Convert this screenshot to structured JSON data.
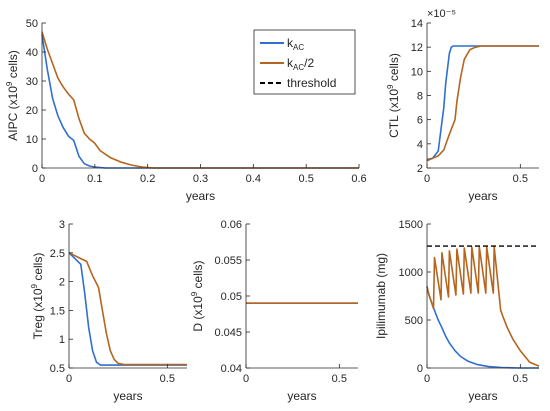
{
  "colors": {
    "kac": "#2f6fd0",
    "kac2": "#b5651d",
    "threshold": "#000000",
    "axis": "#262626"
  },
  "legend": {
    "items": [
      {
        "key": "kac",
        "base": "k",
        "sub": "AC",
        "suffix": ""
      },
      {
        "key": "kac2",
        "base": "k",
        "sub": "AC",
        "suffix": "/2"
      },
      {
        "key": "threshold",
        "base": "threshold",
        "sub": "",
        "suffix": ""
      }
    ]
  },
  "chart_data": [
    {
      "id": "aipc",
      "type": "line",
      "xlabel": "years",
      "ylabel": "AIPC (x10^9 cells)",
      "xlim": [
        0,
        0.6
      ],
      "ylim": [
        0,
        50
      ],
      "xticks": [
        "0",
        "0.1",
        "0.2",
        "0.3",
        "0.4",
        "0.5",
        "0.6"
      ],
      "yticks": [
        "0",
        "10",
        "20",
        "30",
        "40",
        "50"
      ],
      "series": [
        {
          "key": "kac",
          "x": [
            0,
            0.01,
            0.02,
            0.03,
            0.04,
            0.05,
            0.06,
            0.07,
            0.08,
            0.09,
            0.1,
            0.12,
            0.6
          ],
          "y": [
            46,
            34,
            24,
            18,
            14,
            11,
            9.5,
            4,
            1.5,
            0.7,
            0.3,
            0,
            0
          ]
        },
        {
          "key": "kac2",
          "x": [
            0,
            0.01,
            0.02,
            0.03,
            0.04,
            0.05,
            0.06,
            0.07,
            0.08,
            0.09,
            0.1,
            0.11,
            0.13,
            0.15,
            0.17,
            0.19,
            0.21,
            0.6
          ],
          "y": [
            47,
            41,
            36,
            31,
            28,
            25.5,
            23.5,
            17,
            12,
            10,
            8.5,
            6,
            3.5,
            2,
            1,
            0.3,
            0,
            0
          ]
        }
      ]
    },
    {
      "id": "ctl",
      "type": "line",
      "xlabel": "years",
      "ylabel": "CTL (x10^9 cells)",
      "yexp": "×10⁻⁵",
      "xlim": [
        0,
        0.6
      ],
      "ylim": [
        2,
        14
      ],
      "xticks": [
        "0",
        "0.5"
      ],
      "yticks": [
        "2",
        "4",
        "6",
        "8",
        "10",
        "12",
        "14"
      ],
      "series": [
        {
          "key": "kac",
          "x": [
            0,
            0.03,
            0.06,
            0.09,
            0.1,
            0.12,
            0.13,
            0.14,
            0.6
          ],
          "y": [
            2.7,
            2.8,
            3.4,
            7,
            9,
            11.5,
            12,
            12.1,
            12.1
          ]
        },
        {
          "key": "kac2",
          "x": [
            0,
            0.03,
            0.06,
            0.09,
            0.12,
            0.15,
            0.16,
            0.18,
            0.2,
            0.23,
            0.26,
            0.29,
            0.6
          ],
          "y": [
            2.6,
            2.8,
            3,
            3.5,
            4.8,
            6,
            7.5,
            9.5,
            11,
            11.8,
            12,
            12.1,
            12.1
          ]
        }
      ]
    },
    {
      "id": "treg",
      "type": "line",
      "xlabel": "years",
      "ylabel": "Treg (x10^9 cells)",
      "xlim": [
        0,
        0.6
      ],
      "ylim": [
        0.5,
        3
      ],
      "xticks": [
        "0",
        "0.5"
      ],
      "yticks": [
        "0.5",
        "1",
        "1.5",
        "2",
        "2.5",
        "3"
      ],
      "series": [
        {
          "key": "kac",
          "x": [
            0,
            0.03,
            0.06,
            0.08,
            0.1,
            0.12,
            0.14,
            0.16,
            0.6
          ],
          "y": [
            2.5,
            2.4,
            2.3,
            1.8,
            1.2,
            0.8,
            0.6,
            0.55,
            0.55
          ]
        },
        {
          "key": "kac2",
          "x": [
            0,
            0.03,
            0.06,
            0.09,
            0.12,
            0.15,
            0.17,
            0.19,
            0.21,
            0.23,
            0.25,
            0.28,
            0.6
          ],
          "y": [
            2.5,
            2.45,
            2.4,
            2.35,
            2.1,
            1.9,
            1.5,
            1.1,
            0.8,
            0.65,
            0.58,
            0.56,
            0.56
          ]
        }
      ]
    },
    {
      "id": "d",
      "type": "line",
      "xlabel": "years",
      "ylabel": "D (x10^9 cells)",
      "xlim": [
        0,
        0.6
      ],
      "ylim": [
        0.04,
        0.06
      ],
      "xticks": [
        "0",
        "0.5"
      ],
      "yticks": [
        "0.04",
        "0.045",
        "0.05",
        "0.055",
        "0.06"
      ],
      "series": [
        {
          "key": "kac",
          "x": [
            0,
            0.6
          ],
          "y": [
            0.049,
            0.049
          ]
        },
        {
          "key": "kac2",
          "x": [
            0,
            0.6
          ],
          "y": [
            0.049,
            0.049
          ]
        }
      ]
    },
    {
      "id": "ipi",
      "type": "line",
      "xlabel": "years",
      "ylabel": "Ipilimumab (mg)",
      "xlim": [
        0,
        0.6
      ],
      "ylim": [
        0,
        1500
      ],
      "xticks": [
        "0",
        "0.5"
      ],
      "yticks": [
        "0",
        "500",
        "1000",
        "1500"
      ],
      "threshold": 1270,
      "series": [
        {
          "key": "kac",
          "x": [
            0,
            0.01,
            0.025,
            0.04,
            0.06,
            0.08,
            0.1,
            0.12,
            0.15,
            0.18,
            0.22,
            0.27,
            0.33,
            0.4,
            0.45,
            0.5,
            0.55,
            0.6
          ],
          "y": [
            850,
            760,
            680,
            600,
            500,
            420,
            330,
            260,
            180,
            120,
            70,
            35,
            15,
            5,
            2,
            0,
            0,
            0
          ]
        },
        {
          "key": "kac2",
          "x": [
            0,
            0.005,
            0.035,
            0.04,
            0.075,
            0.08,
            0.115,
            0.12,
            0.155,
            0.16,
            0.195,
            0.2,
            0.235,
            0.24,
            0.275,
            0.28,
            0.315,
            0.32,
            0.355,
            0.36,
            0.395,
            0.41,
            0.43,
            0.46,
            0.5,
            0.55,
            0.6
          ],
          "y": [
            850,
            800,
            620,
            1150,
            710,
            1200,
            740,
            1220,
            760,
            1240,
            770,
            1250,
            780,
            1260,
            780,
            1260,
            780,
            1260,
            780,
            1260,
            600,
            520,
            420,
            300,
            180,
            60,
            20
          ]
        }
      ]
    }
  ]
}
